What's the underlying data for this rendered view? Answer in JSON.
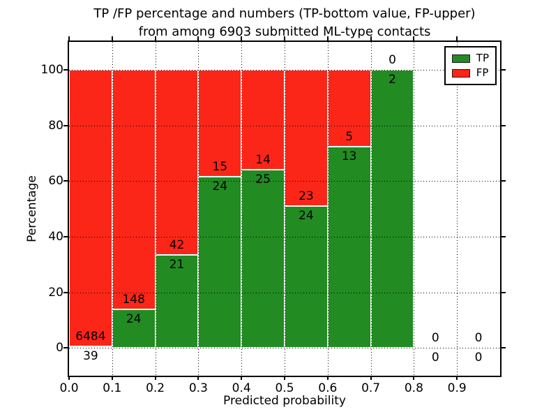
{
  "chart_data": {
    "type": "bar",
    "variant": "stacked-percentage",
    "title_line1": "TP /FP percentage and numbers (TP-bottom value, FP-upper)",
    "title_line2": "from among 6903 submitted ML-type contacts",
    "xlabel": "Predicted probability",
    "ylabel": "Percentage",
    "total_submitted_contacts": 6903,
    "bin_edges": [
      0.0,
      0.1,
      0.2,
      0.3,
      0.4,
      0.5,
      0.6,
      0.7,
      0.8,
      0.9,
      1.0
    ],
    "series": [
      {
        "name": "TP",
        "color": "#228b22",
        "counts": [
          39,
          24,
          21,
          24,
          25,
          24,
          13,
          2,
          0,
          0
        ]
      },
      {
        "name": "FP",
        "color": "#fb2618",
        "counts": [
          6484,
          148,
          42,
          15,
          14,
          23,
          5,
          0,
          0,
          0
        ]
      }
    ],
    "tp_percent_per_bin": [
      0.6,
      14.0,
      33.3,
      61.5,
      64.1,
      51.1,
      72.2,
      100.0,
      0.0,
      0.0
    ],
    "axes": {
      "xlim": [
        0.0,
        1.0
      ],
      "ylim": [
        -10,
        110
      ],
      "xtick_labels": [
        "0.0",
        "0.1",
        "0.2",
        "0.3",
        "0.4",
        "0.5",
        "0.6",
        "0.7",
        "0.8",
        "0.9"
      ],
      "xtick_values": [
        0.0,
        0.1,
        0.2,
        0.3,
        0.4,
        0.5,
        0.6,
        0.7,
        0.8,
        0.9
      ],
      "xgrid_values": [
        0.1,
        0.2,
        0.3,
        0.4,
        0.5,
        0.6,
        0.7,
        0.8,
        0.9
      ],
      "ytick_values": [
        0,
        20,
        40,
        60,
        80,
        100
      ],
      "grid_style": "dotted"
    },
    "legend": {
      "position": "upper right",
      "entries": [
        {
          "label": "TP",
          "color": "#228b22"
        },
        {
          "label": "FP",
          "color": "#fb2618"
        }
      ]
    }
  }
}
